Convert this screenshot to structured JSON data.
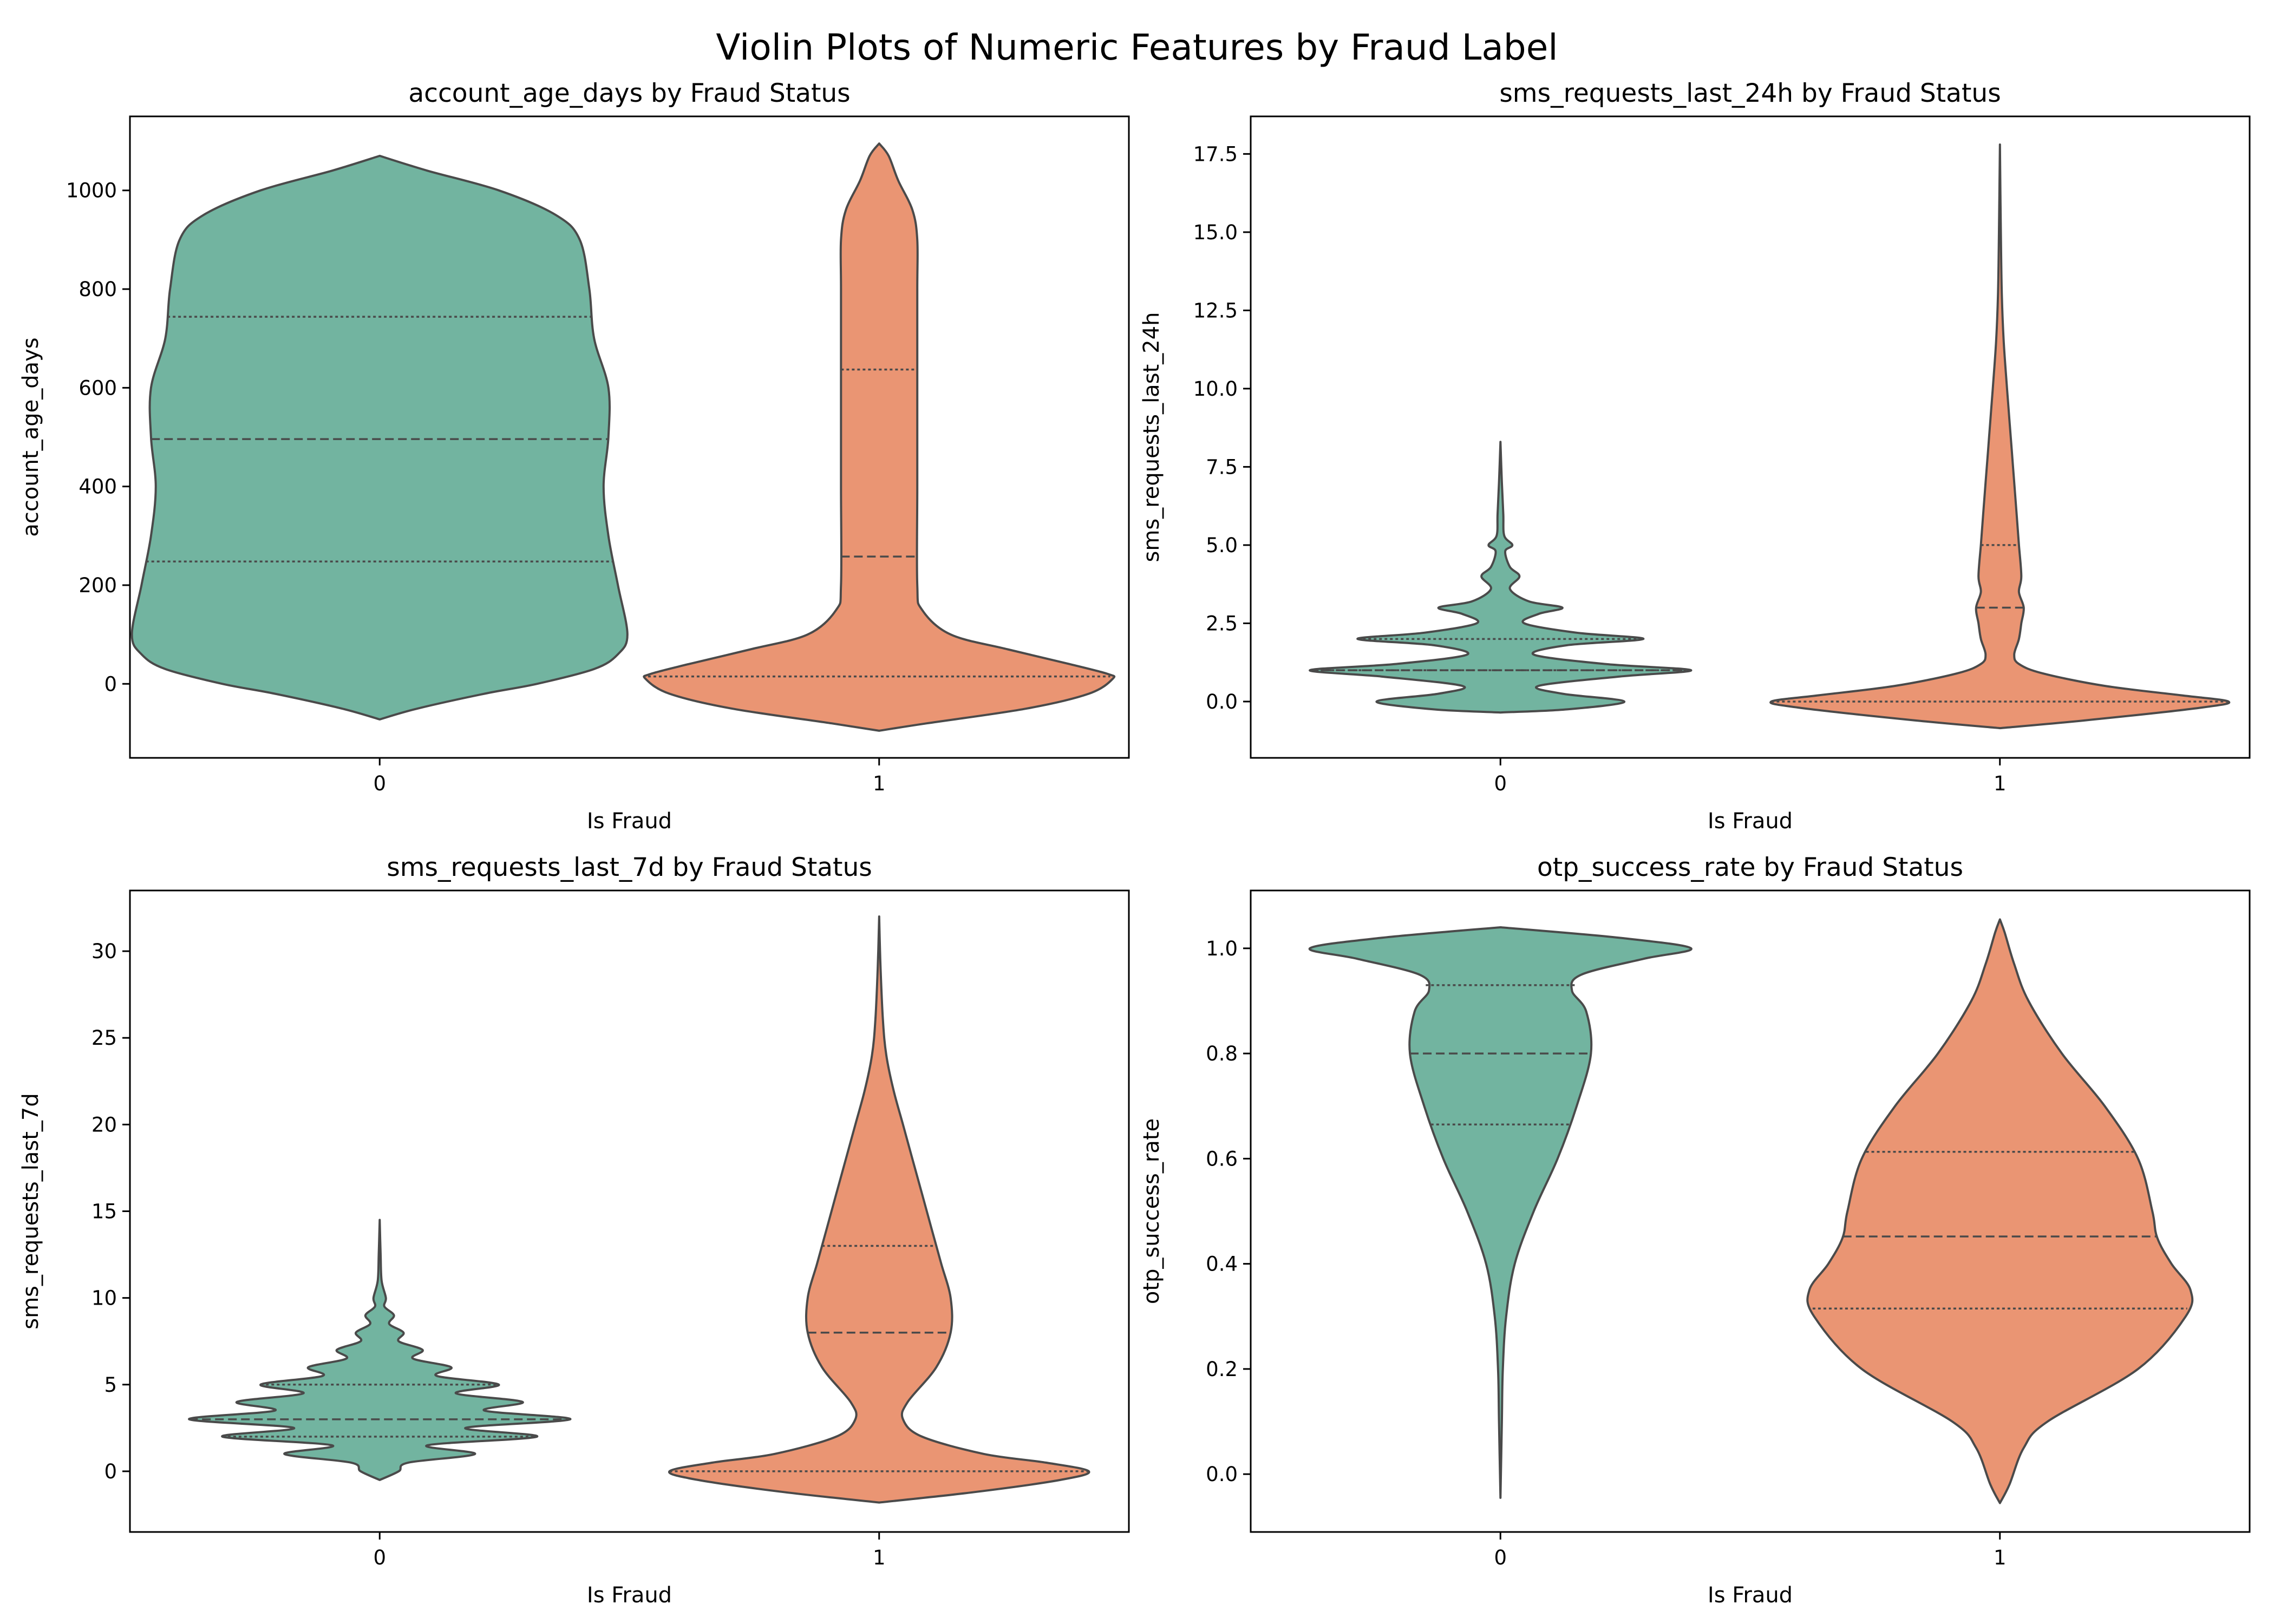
{
  "figure": {
    "title": "Violin Plots of Numeric Features by Fraud Label"
  },
  "colors": {
    "class_0": "#72b4a0",
    "class_1": "#ea9573",
    "outline": "#4a4a4a"
  },
  "chart_data": [
    {
      "type": "violin",
      "title": "account_age_days by Fraud Status",
      "xlabel": "Is Fraud",
      "ylabel": "account_age_days",
      "categories": [
        "0",
        "1"
      ],
      "ylim": [
        -150,
        1150
      ],
      "yticks": [
        0,
        200,
        400,
        600,
        800,
        1000
      ],
      "ytick_labels": [
        "0",
        "200",
        "400",
        "600",
        "800",
        "1000"
      ],
      "inner": "quartile",
      "violins": [
        {
          "category": "0",
          "quartiles": [
            248,
            496,
            744
          ],
          "density": [
            [
              -72,
              0.0
            ],
            [
              -50,
              0.08
            ],
            [
              -20,
              0.22
            ],
            [
              0,
              0.33
            ],
            [
              30,
              0.45
            ],
            [
              60,
              0.5
            ],
            [
              100,
              0.52
            ],
            [
              200,
              0.5
            ],
            [
              300,
              0.48
            ],
            [
              400,
              0.47
            ],
            [
              500,
              0.48
            ],
            [
              600,
              0.48
            ],
            [
              700,
              0.45
            ],
            [
              800,
              0.44
            ],
            [
              900,
              0.42
            ],
            [
              950,
              0.37
            ],
            [
              1000,
              0.25
            ],
            [
              1040,
              0.1
            ],
            [
              1070,
              0.0
            ]
          ]
        },
        {
          "category": "1",
          "quartiles": [
            15,
            258,
            637
          ],
          "density": [
            [
              -95,
              0.0
            ],
            [
              -80,
              0.1
            ],
            [
              -50,
              0.31
            ],
            [
              -20,
              0.44
            ],
            [
              10,
              0.49
            ],
            [
              20,
              0.48
            ],
            [
              40,
              0.4
            ],
            [
              70,
              0.27
            ],
            [
              100,
              0.15
            ],
            [
              150,
              0.09
            ],
            [
              200,
              0.08
            ],
            [
              400,
              0.08
            ],
            [
              600,
              0.08
            ],
            [
              800,
              0.08
            ],
            [
              900,
              0.08
            ],
            [
              960,
              0.07
            ],
            [
              1020,
              0.04
            ],
            [
              1070,
              0.02
            ],
            [
              1095,
              0.0
            ]
          ]
        }
      ]
    },
    {
      "type": "violin",
      "title": "sms_requests_last_24h by Fraud Status",
      "xlabel": "Is Fraud",
      "ylabel": "sms_requests_last_24h",
      "categories": [
        "0",
        "1"
      ],
      "ylim": [
        -1.8,
        18.7
      ],
      "yticks": [
        0.0,
        2.5,
        5.0,
        7.5,
        10.0,
        12.5,
        15.0,
        17.5
      ],
      "ytick_labels": [
        "0.0",
        "2.5",
        "5.0",
        "7.5",
        "10.0",
        "12.5",
        "15.0",
        "17.5"
      ],
      "inner": "quartile",
      "violins": [
        {
          "category": "0",
          "quartiles": [
            1.0,
            1.0,
            2.0
          ],
          "density": [
            [
              -0.35,
              0.0
            ],
            [
              -0.25,
              0.14
            ],
            [
              0.0,
              0.26
            ],
            [
              0.25,
              0.13
            ],
            [
              0.5,
              0.08
            ],
            [
              0.8,
              0.25
            ],
            [
              1.0,
              0.4
            ],
            [
              1.2,
              0.22
            ],
            [
              1.5,
              0.07
            ],
            [
              1.8,
              0.14
            ],
            [
              2.0,
              0.3
            ],
            [
              2.2,
              0.16
            ],
            [
              2.5,
              0.05
            ],
            [
              2.8,
              0.08
            ],
            [
              3.0,
              0.13
            ],
            [
              3.2,
              0.06
            ],
            [
              3.6,
              0.02
            ],
            [
              4.0,
              0.04
            ],
            [
              4.3,
              0.02
            ],
            [
              4.8,
              0.01
            ],
            [
              5.0,
              0.025
            ],
            [
              5.3,
              0.008
            ],
            [
              6.0,
              0.006
            ],
            [
              7.0,
              0.003
            ],
            [
              8.3,
              0.0
            ]
          ]
        },
        {
          "category": "1",
          "quartiles": [
            0.0,
            3.0,
            5.0
          ],
          "density": [
            [
              -0.85,
              0.0
            ],
            [
              -0.6,
              0.18
            ],
            [
              -0.2,
              0.42
            ],
            [
              0.0,
              0.48
            ],
            [
              0.2,
              0.38
            ],
            [
              0.5,
              0.22
            ],
            [
              0.9,
              0.09
            ],
            [
              1.2,
              0.04
            ],
            [
              1.5,
              0.03
            ],
            [
              2.0,
              0.04
            ],
            [
              2.5,
              0.045
            ],
            [
              3.0,
              0.05
            ],
            [
              3.5,
              0.04
            ],
            [
              4.0,
              0.045
            ],
            [
              5.0,
              0.04
            ],
            [
              6.0,
              0.035
            ],
            [
              7.0,
              0.03
            ],
            [
              8.0,
              0.025
            ],
            [
              9.0,
              0.02
            ],
            [
              10.0,
              0.015
            ],
            [
              11.5,
              0.008
            ],
            [
              13.0,
              0.004
            ],
            [
              15.0,
              0.002
            ],
            [
              17.8,
              0.0
            ]
          ]
        }
      ]
    },
    {
      "type": "violin",
      "title": "sms_requests_last_7d by Fraud Status",
      "xlabel": "Is Fraud",
      "ylabel": "sms_requests_last_7d",
      "categories": [
        "0",
        "1"
      ],
      "ylim": [
        -3.5,
        33.5
      ],
      "yticks": [
        0,
        5,
        10,
        15,
        20,
        25,
        30
      ],
      "ytick_labels": [
        "0",
        "5",
        "10",
        "15",
        "20",
        "25",
        "30"
      ],
      "inner": "quartile",
      "violins": [
        {
          "category": "0",
          "quartiles": [
            2.0,
            3.0,
            5.0
          ],
          "density": [
            [
              -0.5,
              0.0
            ],
            [
              0.0,
              0.04
            ],
            [
              0.5,
              0.06
            ],
            [
              1.0,
              0.2
            ],
            [
              1.5,
              0.1
            ],
            [
              2.0,
              0.33
            ],
            [
              2.5,
              0.18
            ],
            [
              3.0,
              0.4
            ],
            [
              3.5,
              0.22
            ],
            [
              4.0,
              0.3
            ],
            [
              4.5,
              0.16
            ],
            [
              5.0,
              0.25
            ],
            [
              5.5,
              0.12
            ],
            [
              6.0,
              0.15
            ],
            [
              6.5,
              0.07
            ],
            [
              7.0,
              0.09
            ],
            [
              7.5,
              0.04
            ],
            [
              8.0,
              0.05
            ],
            [
              8.5,
              0.02
            ],
            [
              9.0,
              0.03
            ],
            [
              9.5,
              0.01
            ],
            [
              10.0,
              0.013
            ],
            [
              11.0,
              0.004
            ],
            [
              12.5,
              0.002
            ],
            [
              14.5,
              0.0
            ]
          ]
        },
        {
          "category": "1",
          "quartiles": [
            0.0,
            8.0,
            13.0
          ],
          "density": [
            [
              -1.8,
              0.0
            ],
            [
              -1.2,
              0.2
            ],
            [
              -0.5,
              0.38
            ],
            [
              0.0,
              0.44
            ],
            [
              0.5,
              0.35
            ],
            [
              1.0,
              0.22
            ],
            [
              2.0,
              0.09
            ],
            [
              3.0,
              0.05
            ],
            [
              4.0,
              0.06
            ],
            [
              6.0,
              0.12
            ],
            [
              8.0,
              0.15
            ],
            [
              10.0,
              0.15
            ],
            [
              12.0,
              0.13
            ],
            [
              14.0,
              0.11
            ],
            [
              16.0,
              0.09
            ],
            [
              18.0,
              0.07
            ],
            [
              20.0,
              0.05
            ],
            [
              22.0,
              0.03
            ],
            [
              24.0,
              0.015
            ],
            [
              26.0,
              0.008
            ],
            [
              29.0,
              0.003
            ],
            [
              32.0,
              0.0
            ]
          ]
        }
      ]
    },
    {
      "type": "violin",
      "title": "otp_success_rate by Fraud Status",
      "xlabel": "Is Fraud",
      "ylabel": "otp_success_rate",
      "categories": [
        "0",
        "1"
      ],
      "ylim": [
        -0.11,
        1.11
      ],
      "yticks": [
        0.0,
        0.2,
        0.4,
        0.6,
        0.8,
        1.0
      ],
      "ytick_labels": [
        "0.0",
        "0.2",
        "0.4",
        "0.6",
        "0.8",
        "1.0"
      ],
      "inner": "quartile",
      "violins": [
        {
          "category": "0",
          "quartiles": [
            0.665,
            0.8,
            0.93
          ],
          "density": [
            [
              -0.045,
              0.0
            ],
            [
              0.1,
              0.003
            ],
            [
              0.2,
              0.005
            ],
            [
              0.3,
              0.012
            ],
            [
              0.4,
              0.03
            ],
            [
              0.5,
              0.07
            ],
            [
              0.6,
              0.12
            ],
            [
              0.7,
              0.16
            ],
            [
              0.8,
              0.19
            ],
            [
              0.88,
              0.18
            ],
            [
              0.92,
              0.15
            ],
            [
              0.95,
              0.17
            ],
            [
              0.98,
              0.3
            ],
            [
              1.0,
              0.4
            ],
            [
              1.02,
              0.25
            ],
            [
              1.04,
              0.0
            ]
          ]
        },
        {
          "category": "1",
          "quartiles": [
            0.315,
            0.452,
            0.613
          ],
          "density": [
            [
              -0.055,
              0.0
            ],
            [
              -0.02,
              0.02
            ],
            [
              0.05,
              0.05
            ],
            [
              0.1,
              0.1
            ],
            [
              0.2,
              0.29
            ],
            [
              0.3,
              0.39
            ],
            [
              0.35,
              0.4
            ],
            [
              0.4,
              0.36
            ],
            [
              0.45,
              0.33
            ],
            [
              0.5,
              0.32
            ],
            [
              0.6,
              0.29
            ],
            [
              0.7,
              0.22
            ],
            [
              0.8,
              0.13
            ],
            [
              0.9,
              0.06
            ],
            [
              0.97,
              0.03
            ],
            [
              1.03,
              0.01
            ],
            [
              1.055,
              0.0
            ]
          ]
        }
      ]
    }
  ]
}
